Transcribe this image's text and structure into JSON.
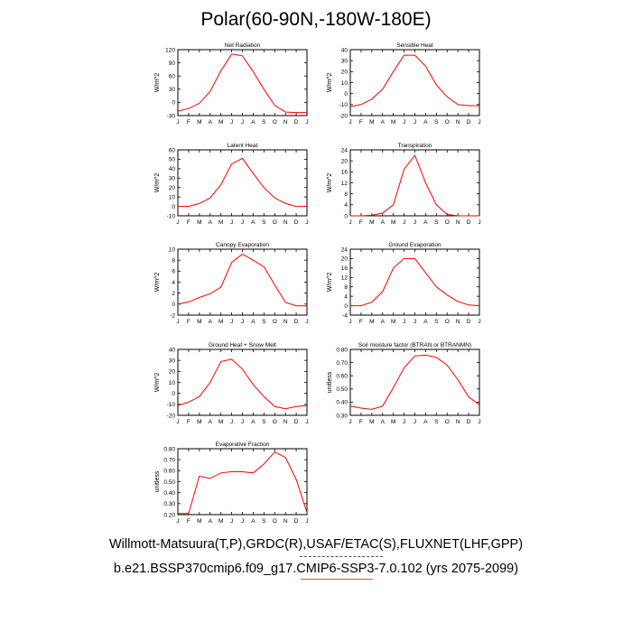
{
  "title": "Polar(60-90N,-180W-180E)",
  "footer": {
    "line1": "Willmott-Matsuura(T,P),GRDC(R),USAF/ETAC(S),FLUXNET(LHF,GPP)",
    "line2": "b.e21.BSSP370cmip6.f09_g17.CMIP6-SSP3-7.0.102 (yrs 2075-2099)"
  },
  "colors": {
    "line": "#ff0000",
    "axis": "#000000"
  },
  "chart_data": [
    {
      "type": "line",
      "title": "Net Radiation",
      "ylabel": "W/m^2",
      "categories": [
        "J",
        "F",
        "M",
        "A",
        "M",
        "J",
        "J",
        "A",
        "S",
        "O",
        "N",
        "D",
        "J"
      ],
      "ylim": [
        -30,
        120
      ],
      "yticks": [
        -30,
        0,
        30,
        60,
        90,
        120
      ],
      "yticklabels": [
        "-30",
        "0",
        "30",
        "60",
        "90",
        "120"
      ],
      "values": [
        -20,
        -14,
        -2,
        25,
        72,
        110,
        106,
        70,
        30,
        -7,
        -22,
        -23,
        -23
      ]
    },
    {
      "type": "line",
      "title": "Sensible Heat",
      "ylabel": "W/m^2",
      "categories": [
        "J",
        "F",
        "M",
        "A",
        "M",
        "J",
        "J",
        "A",
        "S",
        "O",
        "N",
        "D",
        "J"
      ],
      "ylim": [
        -20,
        40
      ],
      "yticks": [
        -20,
        -10,
        0,
        10,
        20,
        30,
        40
      ],
      "yticklabels": [
        "-20",
        "-10",
        "0",
        "10",
        "20",
        "30",
        "40"
      ],
      "values": [
        -12,
        -10,
        -5,
        4,
        20,
        35,
        35,
        25,
        8,
        -3,
        -10,
        -11,
        -11
      ]
    },
    {
      "type": "line",
      "title": "Latent Heat",
      "ylabel": "W/m^2",
      "categories": [
        "J",
        "F",
        "M",
        "A",
        "M",
        "J",
        "J",
        "A",
        "S",
        "O",
        "N",
        "D",
        "J"
      ],
      "ylim": [
        -10,
        60
      ],
      "yticks": [
        -10,
        0,
        10,
        20,
        30,
        40,
        50,
        60
      ],
      "yticklabels": [
        "-10",
        "0",
        "10",
        "20",
        "30",
        "40",
        "50",
        "60"
      ],
      "values": [
        0,
        0,
        3,
        9,
        23,
        45,
        51,
        35,
        20,
        9,
        3,
        0,
        0
      ]
    },
    {
      "type": "line",
      "title": "Transpiration",
      "ylabel": "W/m^2",
      "categories": [
        "J",
        "F",
        "M",
        "A",
        "M",
        "J",
        "J",
        "A",
        "S",
        "O",
        "N",
        "D",
        "J"
      ],
      "ylim": [
        0,
        24
      ],
      "yticks": [
        0,
        4,
        8,
        12,
        16,
        20,
        24
      ],
      "yticklabels": [
        "0",
        "4",
        "8",
        "12",
        "16",
        "20",
        "24"
      ],
      "values": [
        0,
        0,
        0.2,
        1,
        4,
        17,
        22,
        12,
        4,
        0.5,
        0,
        0,
        0
      ]
    },
    {
      "type": "line",
      "title": "Canopy Evaporation",
      "ylabel": "W/m^2",
      "categories": [
        "J",
        "F",
        "M",
        "A",
        "M",
        "J",
        "J",
        "A",
        "S",
        "O",
        "N",
        "D",
        "J"
      ],
      "ylim": [
        -2,
        10
      ],
      "yticks": [
        -2,
        0,
        2,
        4,
        6,
        8,
        10
      ],
      "yticklabels": [
        "-2",
        "0",
        "2",
        "4",
        "6",
        "8",
        "10"
      ],
      "values": [
        0,
        0.4,
        1.2,
        1.9,
        3.1,
        7.6,
        9.1,
        8,
        6.8,
        3.5,
        0.3,
        -0.3,
        -0.3
      ]
    },
    {
      "type": "line",
      "title": "Ground Evaporation",
      "ylabel": "W/m^2",
      "categories": [
        "J",
        "F",
        "M",
        "A",
        "M",
        "J",
        "J",
        "A",
        "S",
        "O",
        "N",
        "D",
        "J"
      ],
      "ylim": [
        -4,
        24
      ],
      "yticks": [
        -4,
        0,
        4,
        8,
        12,
        16,
        20,
        24
      ],
      "yticklabels": [
        "-4",
        "0",
        "4",
        "8",
        "12",
        "16",
        "20",
        "24"
      ],
      "values": [
        0,
        0,
        1.5,
        6,
        16,
        20,
        20,
        14,
        8,
        4.5,
        1.8,
        0.3,
        0
      ]
    },
    {
      "type": "line",
      "title": "Ground Heat + Snow Melt",
      "ylabel": "W/m^2",
      "categories": [
        "J",
        "F",
        "M",
        "A",
        "M",
        "J",
        "J",
        "A",
        "S",
        "O",
        "N",
        "D",
        "J"
      ],
      "ylim": [
        -20,
        40
      ],
      "yticks": [
        -20,
        -10,
        0,
        10,
        20,
        30,
        40
      ],
      "yticklabels": [
        "-20",
        "-10",
        "0",
        "10",
        "20",
        "30",
        "40"
      ],
      "values": [
        -11,
        -8,
        -3,
        10,
        29,
        31,
        22,
        8,
        -3,
        -12,
        -14,
        -12,
        -11
      ]
    },
    {
      "type": "line",
      "title": "Soil moisture factor (BTRAN or BTRANMN)",
      "ylabel": "unitless",
      "categories": [
        "J",
        "F",
        "M",
        "A",
        "M",
        "J",
        "J",
        "A",
        "S",
        "O",
        "N",
        "D",
        "J"
      ],
      "ylim": [
        0.3,
        0.8
      ],
      "yticks": [
        0.3,
        0.4,
        0.5,
        0.6,
        0.7,
        0.8
      ],
      "yticklabels": [
        "0.30",
        "0.40",
        "0.50",
        "0.60",
        "0.70",
        "0.80"
      ],
      "values": [
        0.37,
        0.355,
        0.345,
        0.37,
        0.51,
        0.66,
        0.75,
        0.757,
        0.74,
        0.68,
        0.57,
        0.44,
        0.38
      ]
    },
    {
      "type": "line",
      "title": "Evaporative Fraction",
      "ylabel": "unitless",
      "categories": [
        "J",
        "F",
        "M",
        "A",
        "M",
        "J",
        "J",
        "A",
        "S",
        "O",
        "N",
        "D",
        "J"
      ],
      "ylim": [
        0.2,
        0.8
      ],
      "yticks": [
        0.2,
        0.3,
        0.4,
        0.5,
        0.6,
        0.7,
        0.8
      ],
      "yticklabels": [
        "0.20",
        "0.30",
        "0.40",
        "0.50",
        "0.60",
        "0.70",
        "0.80"
      ],
      "values": [
        0.21,
        0.21,
        0.55,
        0.53,
        0.58,
        0.59,
        0.59,
        0.58,
        0.66,
        0.77,
        0.72,
        0.52,
        0.22
      ]
    }
  ]
}
